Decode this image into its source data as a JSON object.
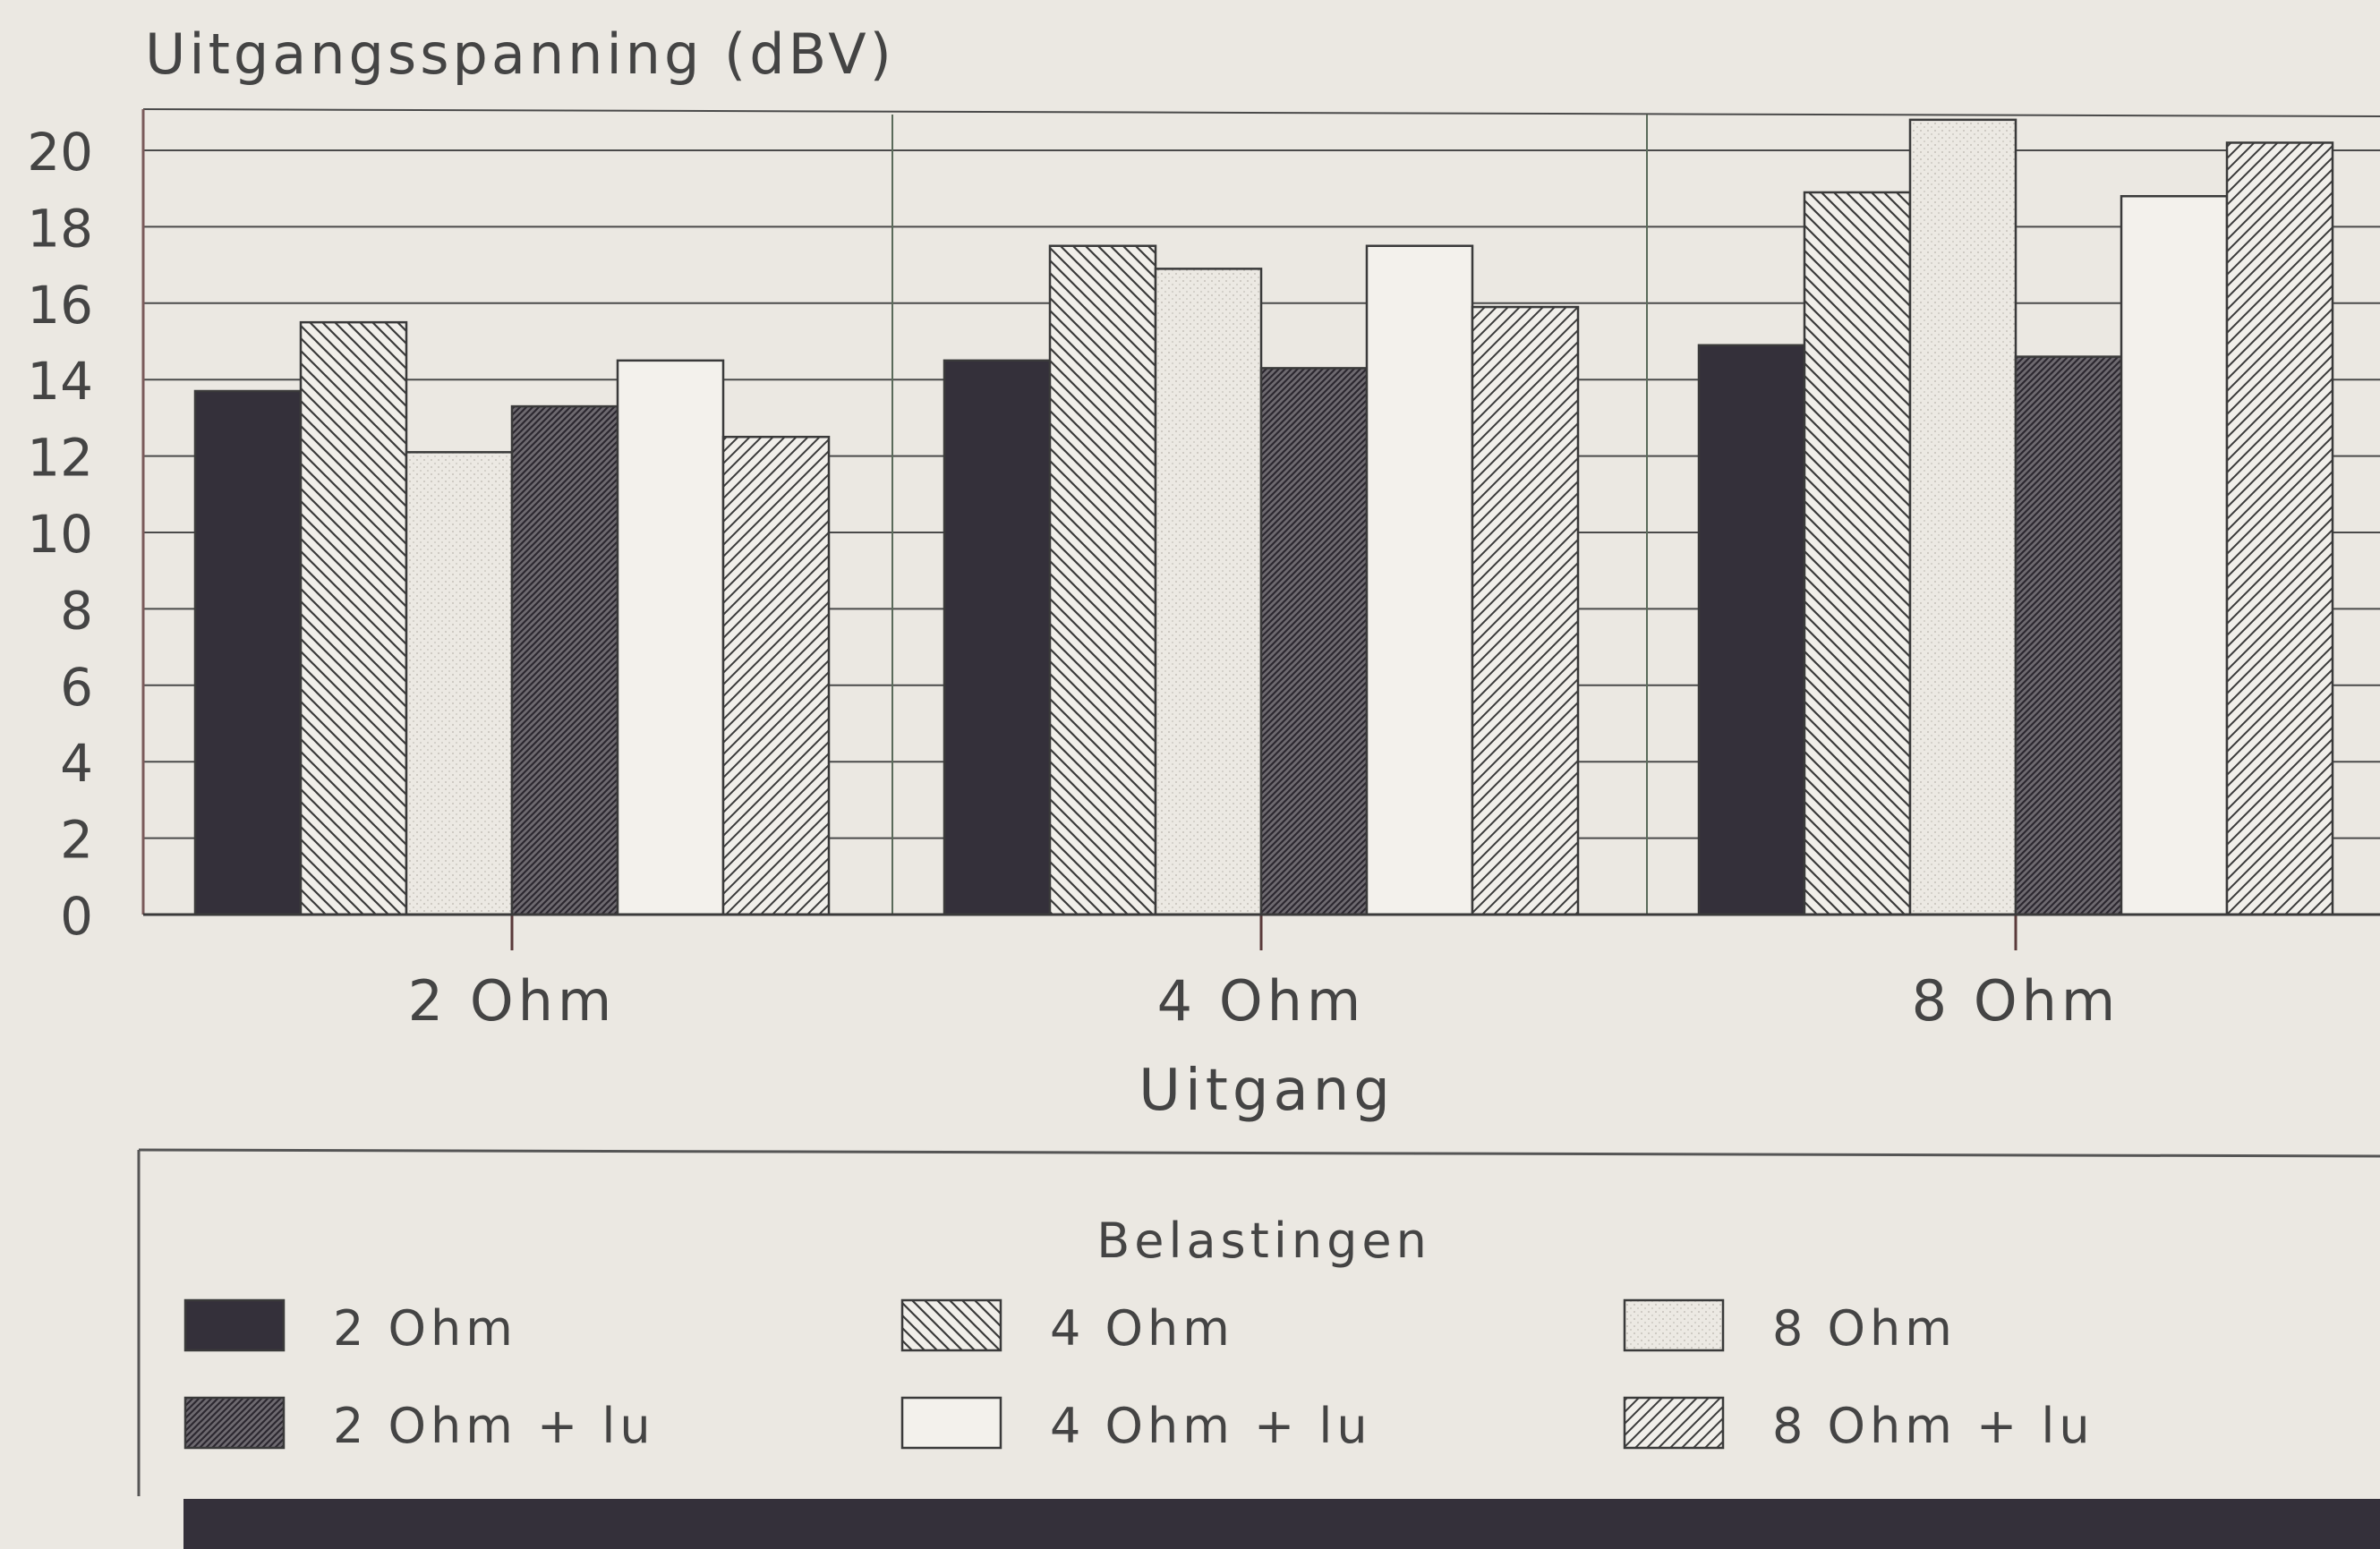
{
  "chart_data": {
    "type": "bar",
    "title": "",
    "ylabel": "Uitgangsspanning (dBV)",
    "xlabel": "Uitgang",
    "ylim": [
      0,
      21
    ],
    "yticks": [
      0,
      2,
      4,
      6,
      8,
      10,
      12,
      14,
      16,
      18,
      20
    ],
    "categories": [
      "2 Ohm",
      "4 Ohm",
      "8 Ohm"
    ],
    "legend": {
      "title": "Belastingen",
      "placement": "bottom"
    },
    "grid": true,
    "series": [
      {
        "name": "2 Ohm",
        "pattern": "solid-dark",
        "values": [
          13.7,
          14.5,
          14.9
        ]
      },
      {
        "name": "4 Ohm",
        "pattern": "hatch-back-sparse",
        "values": [
          15.5,
          17.5,
          18.9
        ]
      },
      {
        "name": "8 Ohm",
        "pattern": "dots",
        "values": [
          12.1,
          16.9,
          20.8
        ]
      },
      {
        "name": "2 Ohm + lu",
        "pattern": "hatch-forward-dense",
        "values": [
          13.3,
          14.3,
          14.6
        ]
      },
      {
        "name": "4 Ohm + lu",
        "pattern": "blank",
        "values": [
          14.5,
          17.5,
          18.8
        ]
      },
      {
        "name": "8 Ohm + lu",
        "pattern": "hatch-forward-sparse",
        "values": [
          12.5,
          15.9,
          20.2
        ]
      }
    ]
  },
  "colors": {
    "background": "#ebe8e2",
    "ink": "#444444",
    "bar_dark": "#34303a",
    "bar_outline": "#3a3a3a"
  }
}
